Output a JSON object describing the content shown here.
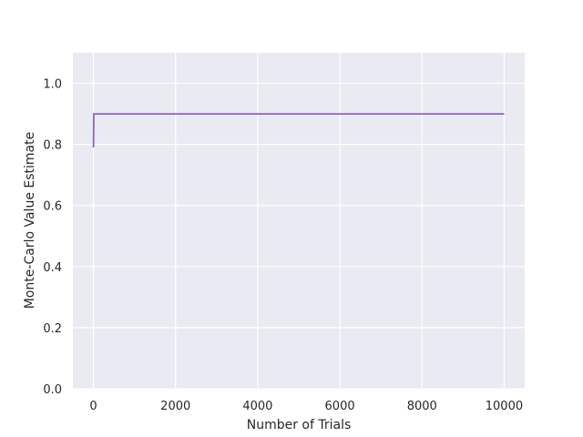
{
  "chart_data": {
    "type": "line",
    "xlabel": "Number of Trials",
    "ylabel": "Monte-Carlo Value Estimate",
    "x": [
      1,
      10,
      10000
    ],
    "series": [
      {
        "color": "#8c62c0",
        "values": [
          0.79,
          0.9,
          0.9
        ]
      }
    ],
    "xlim": [
      -500,
      10500
    ],
    "xticks": [
      0,
      2000,
      4000,
      6000,
      8000,
      10000
    ],
    "ylim": [
      0,
      1.1
    ],
    "yticks": [
      {
        "value": 0,
        "label": "0.0"
      },
      {
        "value": 0.2,
        "label": "0.2"
      },
      {
        "value": 0.4,
        "label": "0.4"
      },
      {
        "value": 0.6,
        "label": "0.6"
      },
      {
        "value": 0.8,
        "label": "0.8"
      },
      {
        "value": 1,
        "label": "1.0"
      }
    ],
    "grid": true,
    "background": "#eaeaf2"
  }
}
